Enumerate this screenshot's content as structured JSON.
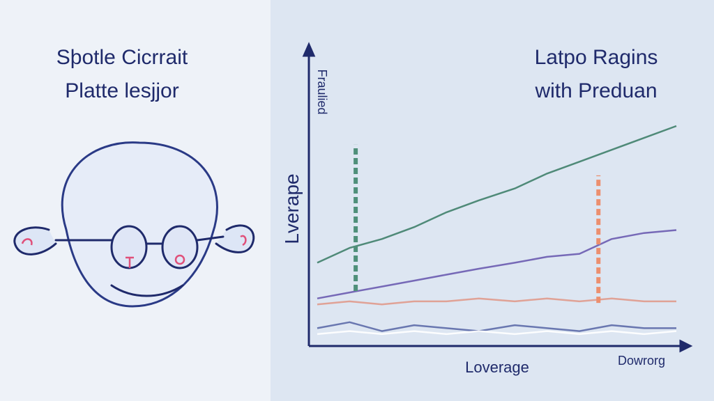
{
  "left_panel": {
    "title": [
      "Sþotle Cicrrait",
      "Platte lesjjor"
    ]
  },
  "chart_data": {
    "type": "line",
    "title": [
      "Latpo Ragins",
      "with Preduan"
    ],
    "y_label_top": "Fraulied",
    "y_label": "Lverape",
    "x_label": "Loverage",
    "x_label_end": "Dowrorg",
    "xlim": [
      0,
      100
    ],
    "ylim": [
      0,
      100
    ],
    "x": [
      0,
      9,
      18,
      27,
      36,
      45,
      55,
      64,
      73,
      82,
      91,
      100
    ],
    "series": [
      {
        "color": "#3f7f6a",
        "values": [
          28,
          33,
          36,
          40,
          45,
          49,
          53,
          58,
          62,
          66,
          70,
          74
        ]
      },
      {
        "color": "#6a5bb0",
        "values": [
          16,
          18,
          20,
          22,
          24,
          26,
          28,
          30,
          31,
          36,
          38,
          39
        ]
      },
      {
        "color": "#e09a8c",
        "values": [
          14,
          15,
          14,
          15,
          15,
          16,
          15,
          16,
          15,
          16,
          15,
          15
        ]
      },
      {
        "color": "#5c6aa8",
        "values": [
          6,
          8,
          5,
          7,
          6,
          5,
          7,
          6,
          5,
          7,
          6,
          6
        ]
      },
      {
        "color": "#ffffff",
        "values": [
          4,
          5,
          4,
          5,
          4,
          5,
          4,
          5,
          4,
          5,
          4,
          5
        ]
      }
    ],
    "markers": [
      {
        "x": 10.7,
        "y": [
          18.5,
          67.7
        ],
        "color": "#4f8f7a"
      },
      {
        "x": 78.3,
        "y": [
          14.5,
          57.4
        ],
        "color": "#ec8f6f"
      }
    ]
  }
}
